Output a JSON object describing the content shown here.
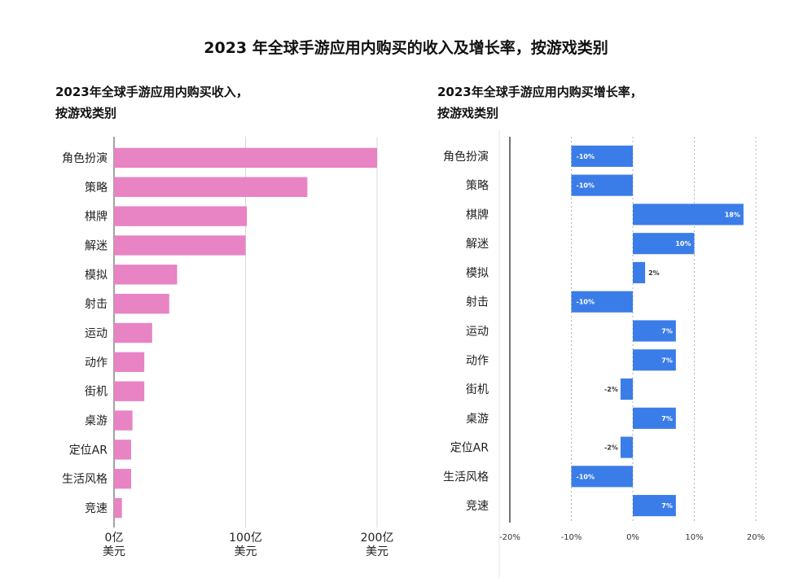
{
  "title": "2023 年全球手游应用内购买的收入及增长率，按游戏类别",
  "charts": [
    {
      "subtitle_line1": "2023年全球手游应用内购买收入，",
      "subtitle_line2": "按游戏类别"
    },
    {
      "subtitle_line1": "2023年全球手游应用内购买增长率，",
      "subtitle_line2": "按游戏类别"
    }
  ],
  "chart_data": [
    {
      "type": "bar",
      "orientation": "horizontal",
      "categories": [
        "角色扮演",
        "策略",
        "棋牌",
        "解迷",
        "模拟",
        "射击",
        "运动",
        "动作",
        "街机",
        "桌游",
        "定位AR",
        "生活风格",
        "竞速"
      ],
      "values": [
        200,
        147,
        101,
        100,
        48,
        42,
        29,
        23,
        23,
        14,
        13,
        13,
        6
      ],
      "x_ticks": [
        {
          "value": 0,
          "line1": "0亿",
          "line2": "美元"
        },
        {
          "value": 100,
          "line1": "100亿",
          "line2": "美元"
        },
        {
          "value": 200,
          "line1": "200亿",
          "line2": "美元"
        }
      ],
      "xlim": [
        0,
        200
      ],
      "color": "#e883c4",
      "grid": true
    },
    {
      "type": "bar",
      "orientation": "horizontal",
      "categories": [
        "角色扮演",
        "策略",
        "棋牌",
        "解迷",
        "模拟",
        "射击",
        "运动",
        "动作",
        "街机",
        "桌游",
        "定位AR",
        "生活风格",
        "竞速"
      ],
      "values": [
        -10,
        -10,
        18,
        10,
        2,
        -10,
        7,
        7,
        -2,
        7,
        -2,
        -10,
        7
      ],
      "data_labels": [
        "-10%",
        "-10%",
        "18%",
        "10%",
        "2%",
        "-10%",
        "7%",
        "7%",
        "-2%",
        "7%",
        "-2%",
        "-10%",
        "7%"
      ],
      "x_ticks": [
        "-20%",
        "-10%",
        "0%",
        "10%",
        "20%"
      ],
      "x_tick_values": [
        -20,
        -10,
        0,
        10,
        20
      ],
      "xlim": [
        -20,
        20
      ],
      "color": "#3b7de8",
      "grid": true
    }
  ]
}
